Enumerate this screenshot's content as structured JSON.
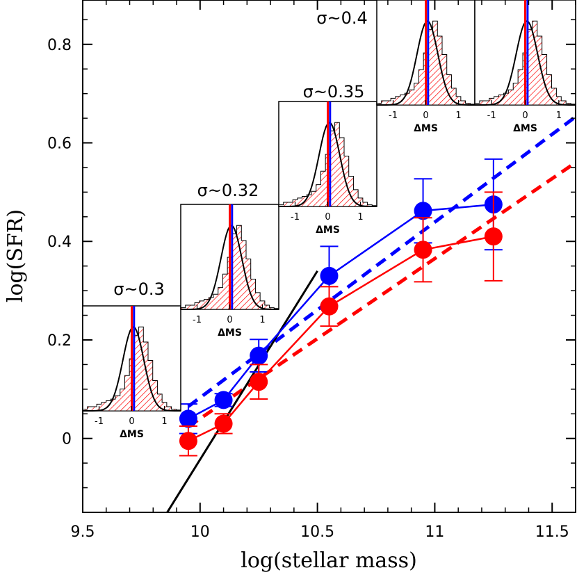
{
  "chart_data": {
    "type": "line",
    "xlabel": "log(stellar mass)",
    "ylabel": "log(SFR)",
    "xlim": [
      9.5,
      11.6
    ],
    "ylim": [
      -0.15,
      0.89
    ],
    "xticks": [
      9.5,
      10,
      10.5,
      11,
      11.5
    ],
    "xtick_labels": [
      "9.5",
      "10",
      "10.5",
      "11",
      "11.5"
    ],
    "yticks": [
      0,
      0.2,
      0.4,
      0.6,
      0.8
    ],
    "ytick_labels": [
      "0",
      "0.2",
      "0.4",
      "0.6",
      "0.8"
    ],
    "series": [
      {
        "color": "#0000ff",
        "style": "markers-with-line",
        "x": [
          9.95,
          10.1,
          10.25,
          10.55,
          10.95,
          11.25
        ],
        "y": [
          0.04,
          0.078,
          0.168,
          0.33,
          0.462,
          0.475
        ],
        "err": [
          0.03,
          0.013,
          0.033,
          0.06,
          0.065,
          0.092
        ]
      },
      {
        "color": "#ff0000",
        "style": "markers-with-line",
        "x": [
          9.95,
          10.1,
          10.25,
          10.55,
          10.95,
          11.25
        ],
        "y": [
          -0.005,
          0.03,
          0.115,
          0.268,
          0.383,
          0.41
        ],
        "err": [
          0.03,
          0.02,
          0.035,
          0.04,
          0.065,
          0.09
        ]
      },
      {
        "color": "#0000ff",
        "style": "dashed-fit",
        "x": [
          9.95,
          11.6
        ],
        "y": [
          0.065,
          0.653
        ]
      },
      {
        "color": "#ff0000",
        "style": "dashed-fit",
        "x": [
          9.95,
          11.6
        ],
        "y": [
          0.024,
          0.56
        ]
      },
      {
        "color": "#000000",
        "style": "solid-line",
        "x": [
          9.86,
          10.5
        ],
        "y": [
          -0.15,
          0.34
        ]
      }
    ],
    "insets": [
      {
        "sigma_label": "σ~0.3",
        "xticks": [
          "-1",
          "0",
          "1"
        ],
        "xlabel": "ΔMS"
      },
      {
        "sigma_label": "σ~0.32",
        "xticks": [
          "-1",
          "0",
          "1"
        ],
        "xlabel": "ΔMS"
      },
      {
        "sigma_label": "σ~0.35",
        "xticks": [
          "-1",
          "0",
          "1"
        ],
        "xlabel": "ΔMS"
      },
      {
        "sigma_label": "σ~0.4",
        "xticks": [
          "-1",
          "0",
          "1"
        ],
        "xlabel": "ΔMS"
      },
      {
        "sigma_label": "",
        "xticks": [
          "-1",
          "0",
          "1"
        ],
        "xlabel": "ΔMS"
      }
    ],
    "colors": {
      "blue": "#0000ff",
      "red": "#ff0000",
      "fit": "#000000"
    }
  }
}
